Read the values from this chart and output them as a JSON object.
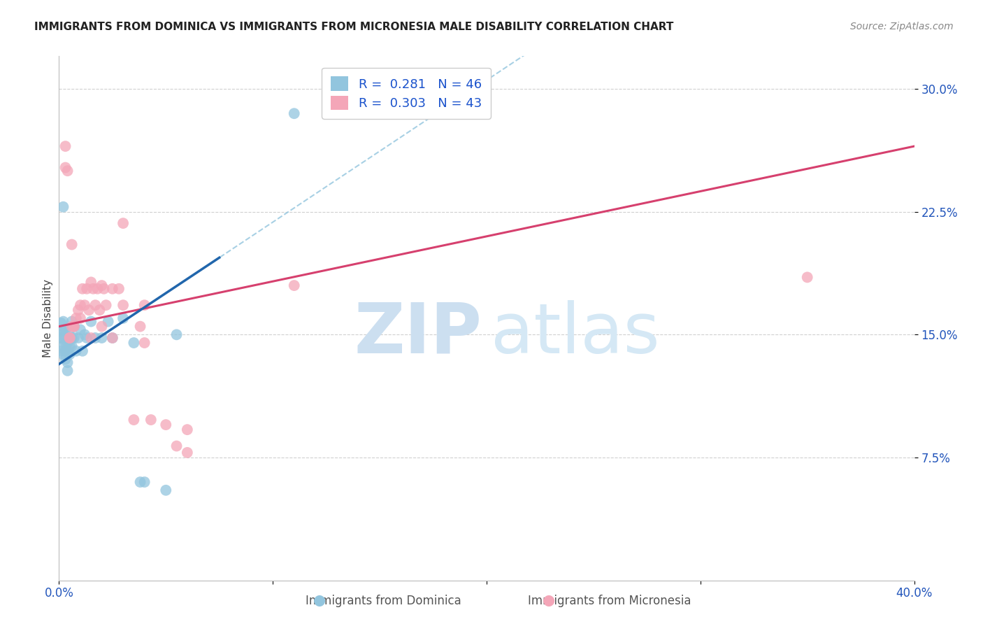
{
  "title": "IMMIGRANTS FROM DOMINICA VS IMMIGRANTS FROM MICRONESIA MALE DISABILITY CORRELATION CHART",
  "source": "Source: ZipAtlas.com",
  "ylabel": "Male Disability",
  "xlim": [
    0.0,
    0.4
  ],
  "ylim": [
    0.0,
    0.32
  ],
  "xticks": [
    0.0,
    0.1,
    0.2,
    0.3,
    0.4
  ],
  "xticklabels": [
    "0.0%",
    "",
    "",
    "",
    "40.0%"
  ],
  "yticks": [
    0.075,
    0.15,
    0.225,
    0.3
  ],
  "yticklabels": [
    "7.5%",
    "15.0%",
    "22.5%",
    "30.0%"
  ],
  "color_blue": "#92c5de",
  "color_pink": "#f4a6b8",
  "color_blue_line": "#2166ac",
  "color_pink_line": "#d6406e",
  "color_blue_dashed": "#92c5de",
  "grid_color": "#d0d0d0",
  "blue_line_x0": 0.0,
  "blue_line_y0": 0.132,
  "blue_line_x1": 0.075,
  "blue_line_y1": 0.197,
  "pink_line_x0": 0.0,
  "pink_line_y0": 0.155,
  "pink_line_x1": 0.4,
  "pink_line_y1": 0.265,
  "blue_x": [
    0.001,
    0.001,
    0.001,
    0.001,
    0.002,
    0.002,
    0.002,
    0.002,
    0.002,
    0.003,
    0.003,
    0.003,
    0.003,
    0.003,
    0.004,
    0.004,
    0.004,
    0.004,
    0.005,
    0.005,
    0.005,
    0.005,
    0.006,
    0.006,
    0.006,
    0.007,
    0.007,
    0.008,
    0.009,
    0.01,
    0.011,
    0.012,
    0.013,
    0.015,
    0.017,
    0.02,
    0.023,
    0.025,
    0.03,
    0.035,
    0.038,
    0.04,
    0.05,
    0.055,
    0.002,
    0.11
  ],
  "blue_y": [
    0.14,
    0.148,
    0.152,
    0.157,
    0.138,
    0.143,
    0.148,
    0.153,
    0.158,
    0.135,
    0.14,
    0.145,
    0.148,
    0.153,
    0.128,
    0.133,
    0.14,
    0.145,
    0.138,
    0.143,
    0.148,
    0.153,
    0.143,
    0.148,
    0.158,
    0.148,
    0.155,
    0.14,
    0.148,
    0.153,
    0.14,
    0.15,
    0.148,
    0.158,
    0.148,
    0.148,
    0.158,
    0.148,
    0.16,
    0.145,
    0.06,
    0.06,
    0.055,
    0.15,
    0.228,
    0.285
  ],
  "pink_x": [
    0.003,
    0.003,
    0.004,
    0.005,
    0.006,
    0.006,
    0.007,
    0.008,
    0.009,
    0.01,
    0.011,
    0.012,
    0.013,
    0.014,
    0.015,
    0.016,
    0.017,
    0.018,
    0.019,
    0.02,
    0.021,
    0.022,
    0.025,
    0.028,
    0.03,
    0.035,
    0.038,
    0.04,
    0.043,
    0.05,
    0.055,
    0.06,
    0.11,
    0.35,
    0.005,
    0.007,
    0.01,
    0.015,
    0.02,
    0.025,
    0.03,
    0.04,
    0.06
  ],
  "pink_y": [
    0.265,
    0.252,
    0.25,
    0.148,
    0.155,
    0.205,
    0.155,
    0.16,
    0.165,
    0.168,
    0.178,
    0.168,
    0.178,
    0.165,
    0.182,
    0.178,
    0.168,
    0.178,
    0.165,
    0.18,
    0.178,
    0.168,
    0.178,
    0.178,
    0.168,
    0.098,
    0.155,
    0.145,
    0.098,
    0.095,
    0.082,
    0.092,
    0.18,
    0.185,
    0.148,
    0.155,
    0.16,
    0.148,
    0.155,
    0.148,
    0.218,
    0.168,
    0.078
  ]
}
